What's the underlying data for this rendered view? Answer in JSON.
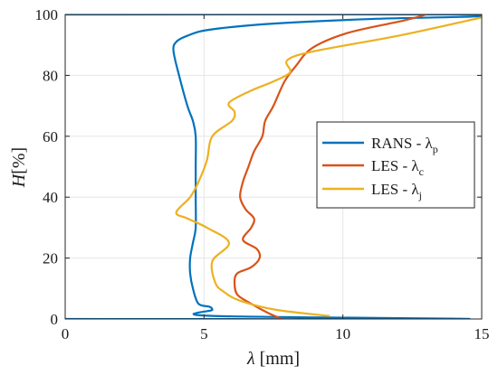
{
  "chart_data": {
    "type": "line",
    "xlabel_var": "λ",
    "xlabel_unit": " [mm]",
    "ylabel_var": "H",
    "ylabel_unit": "[%]",
    "xlim": [
      0,
      15
    ],
    "ylim": [
      0,
      100
    ],
    "xticks": [
      "0",
      "5",
      "10",
      "15"
    ],
    "yticks": [
      "0",
      "20",
      "40",
      "60",
      "80",
      "100"
    ],
    "grid": true,
    "legend_position": "right-middle",
    "series": [
      {
        "name_main": "RANS - λ",
        "name_sub": "p",
        "color": "#0072BD",
        "points": [
          [
            0,
            0
          ],
          [
            14.5,
            0
          ],
          [
            5.3,
            1
          ],
          [
            5.3,
            3
          ],
          [
            5.2,
            4
          ],
          [
            4.8,
            5
          ],
          [
            4.6,
            10
          ],
          [
            4.5,
            15
          ],
          [
            4.5,
            20
          ],
          [
            4.6,
            25
          ],
          [
            4.7,
            30
          ],
          [
            4.7,
            40
          ],
          [
            4.7,
            50
          ],
          [
            4.7,
            60
          ],
          [
            4.6,
            65
          ],
          [
            4.4,
            70
          ],
          [
            4.1,
            80
          ],
          [
            3.9,
            88
          ],
          [
            4.0,
            91
          ],
          [
            4.4,
            93
          ],
          [
            5.2,
            95
          ],
          [
            7.5,
            97
          ],
          [
            11.0,
            98.5
          ],
          [
            14.6,
            99.3
          ],
          [
            15.0,
            100
          ],
          [
            0,
            100
          ]
        ]
      },
      {
        "name_main": "LES - λ",
        "name_sub": "c",
        "color": "#D95319",
        "points": [
          [
            7.8,
            0
          ],
          [
            7.3,
            2
          ],
          [
            6.7,
            5
          ],
          [
            6.2,
            8
          ],
          [
            6.1,
            12
          ],
          [
            6.2,
            15
          ],
          [
            6.7,
            17
          ],
          [
            7.0,
            20
          ],
          [
            6.9,
            23
          ],
          [
            6.4,
            26
          ],
          [
            6.7,
            30
          ],
          [
            6.8,
            33
          ],
          [
            6.5,
            36
          ],
          [
            6.3,
            40
          ],
          [
            6.4,
            45
          ],
          [
            6.6,
            50
          ],
          [
            6.8,
            55
          ],
          [
            7.1,
            60
          ],
          [
            7.2,
            65
          ],
          [
            7.5,
            70
          ],
          [
            7.9,
            78
          ],
          [
            8.3,
            83
          ],
          [
            8.9,
            89
          ],
          [
            10.2,
            94
          ],
          [
            12.2,
            98
          ],
          [
            13.0,
            100
          ]
        ]
      },
      {
        "name_main": "LES - λ",
        "name_sub": "j",
        "color": "#EDB120",
        "points": [
          [
            9.5,
            1
          ],
          [
            7.6,
            3
          ],
          [
            6.3,
            6
          ],
          [
            5.7,
            9
          ],
          [
            5.4,
            12
          ],
          [
            5.3,
            19
          ],
          [
            5.9,
            25
          ],
          [
            5.1,
            30
          ],
          [
            4.4,
            33
          ],
          [
            4.0,
            35
          ],
          [
            4.5,
            40
          ],
          [
            4.8,
            45
          ],
          [
            5.1,
            52
          ],
          [
            5.3,
            60
          ],
          [
            6.0,
            65
          ],
          [
            6.1,
            68
          ],
          [
            5.9,
            71
          ],
          [
            6.7,
            75
          ],
          [
            7.5,
            78
          ],
          [
            8.1,
            81
          ],
          [
            8.0,
            85
          ],
          [
            9.0,
            88
          ],
          [
            12.0,
            93
          ],
          [
            15.0,
            99
          ]
        ]
      }
    ]
  }
}
